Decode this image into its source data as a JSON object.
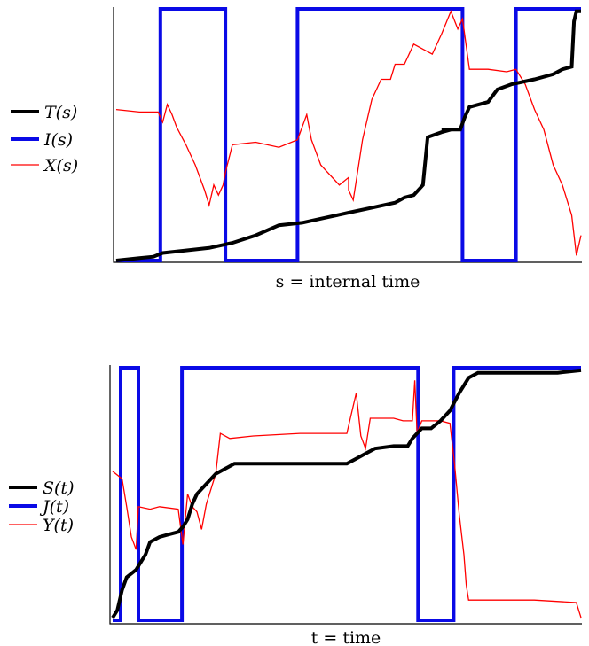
{
  "chart_data": [
    {
      "type": "line",
      "title": "",
      "xlabel": "s = internal time",
      "ylabel": "",
      "xlim": [
        0,
        1
      ],
      "ylim": [
        0,
        1
      ],
      "grid": false,
      "legend_position": "left",
      "series": [
        {
          "name": "T(s)",
          "color": "#000000",
          "width": 4,
          "points": [
            [
              0,
              0
            ],
            [
              0.05,
              0.01
            ],
            [
              0.08,
              0.015
            ],
            [
              0.1,
              0.03
            ],
            [
              0.15,
              0.04
            ],
            [
              0.2,
              0.05
            ],
            [
              0.25,
              0.07
            ],
            [
              0.3,
              0.1
            ],
            [
              0.35,
              0.14
            ],
            [
              0.4,
              0.15
            ],
            [
              0.45,
              0.17
            ],
            [
              0.5,
              0.19
            ],
            [
              0.55,
              0.21
            ],
            [
              0.6,
              0.23
            ],
            [
              0.62,
              0.25
            ],
            [
              0.64,
              0.26
            ],
            [
              0.66,
              0.3
            ],
            [
              0.67,
              0.49
            ],
            [
              0.7,
              0.51
            ],
            [
              0.72,
              0.52
            ],
            [
              0.7,
              0.52
            ],
            [
              0.74,
              0.52
            ],
            [
              0.75,
              0.57
            ],
            [
              0.76,
              0.61
            ],
            [
              0.8,
              0.63
            ],
            [
              0.82,
              0.68
            ],
            [
              0.85,
              0.7
            ],
            [
              0.9,
              0.72
            ],
            [
              0.94,
              0.74
            ],
            [
              0.96,
              0.76
            ],
            [
              0.98,
              0.77
            ],
            [
              0.985,
              0.95
            ],
            [
              0.99,
              0.99
            ],
            [
              1,
              0.99
            ]
          ]
        },
        {
          "name": "I(s)",
          "color": "#0a0ae6",
          "width": 4,
          "steps": [
            [
              0,
              0
            ],
            [
              0.095,
              1
            ],
            [
              0.235,
              0
            ],
            [
              0.39,
              1
            ],
            [
              0.745,
              0
            ],
            [
              0.86,
              1
            ],
            [
              1,
              1
            ]
          ]
        },
        {
          "name": "X(s)",
          "color": "#ff0000",
          "width": 1.3,
          "points": [
            [
              0,
              0.6
            ],
            [
              0.05,
              0.59
            ],
            [
              0.09,
              0.59
            ],
            [
              0.1,
              0.55
            ],
            [
              0.11,
              0.62
            ],
            [
              0.12,
              0.58
            ],
            [
              0.13,
              0.53
            ],
            [
              0.15,
              0.46
            ],
            [
              0.17,
              0.38
            ],
            [
              0.19,
              0.28
            ],
            [
              0.2,
              0.22
            ],
            [
              0.21,
              0.3
            ],
            [
              0.22,
              0.26
            ],
            [
              0.23,
              0.3
            ],
            [
              0.235,
              0.35
            ],
            [
              0.25,
              0.46
            ],
            [
              0.3,
              0.47
            ],
            [
              0.35,
              0.45
            ],
            [
              0.39,
              0.48
            ],
            [
              0.41,
              0.58
            ],
            [
              0.42,
              0.48
            ],
            [
              0.44,
              0.38
            ],
            [
              0.45,
              0.36
            ],
            [
              0.48,
              0.3
            ],
            [
              0.5,
              0.33
            ],
            [
              0.5,
              0.28
            ],
            [
              0.51,
              0.24
            ],
            [
              0.52,
              0.36
            ],
            [
              0.53,
              0.48
            ],
            [
              0.55,
              0.64
            ],
            [
              0.57,
              0.72
            ],
            [
              0.59,
              0.72
            ],
            [
              0.6,
              0.78
            ],
            [
              0.62,
              0.78
            ],
            [
              0.64,
              0.86
            ],
            [
              0.66,
              0.84
            ],
            [
              0.68,
              0.82
            ],
            [
              0.7,
              0.9
            ],
            [
              0.72,
              0.99
            ],
            [
              0.735,
              0.92
            ],
            [
              0.745,
              0.96
            ],
            [
              0.76,
              0.76
            ],
            [
              0.8,
              0.76
            ],
            [
              0.84,
              0.75
            ],
            [
              0.86,
              0.76
            ],
            [
              0.88,
              0.7
            ],
            [
              0.9,
              0.6
            ],
            [
              0.92,
              0.52
            ],
            [
              0.94,
              0.38
            ],
            [
              0.96,
              0.3
            ],
            [
              0.98,
              0.18
            ],
            [
              0.99,
              0.02
            ],
            [
              1,
              0.1
            ]
          ]
        }
      ]
    },
    {
      "type": "line",
      "title": "",
      "xlabel": "t = time",
      "ylabel": "",
      "xlim": [
        0,
        1
      ],
      "ylim": [
        0,
        1
      ],
      "grid": false,
      "legend_position": "left",
      "series": [
        {
          "name": "S(t)",
          "color": "#000000",
          "width": 4,
          "points": [
            [
              0,
              0.01
            ],
            [
              0.01,
              0.04
            ],
            [
              0.02,
              0.12
            ],
            [
              0.03,
              0.17
            ],
            [
              0.05,
              0.2
            ],
            [
              0.07,
              0.26
            ],
            [
              0.08,
              0.31
            ],
            [
              0.1,
              0.33
            ],
            [
              0.12,
              0.34
            ],
            [
              0.14,
              0.35
            ],
            [
              0.15,
              0.37
            ],
            [
              0.16,
              0.4
            ],
            [
              0.17,
              0.46
            ],
            [
              0.18,
              0.5
            ],
            [
              0.2,
              0.54
            ],
            [
              0.22,
              0.58
            ],
            [
              0.24,
              0.6
            ],
            [
              0.26,
              0.62
            ],
            [
              0.3,
              0.62
            ],
            [
              0.4,
              0.62
            ],
            [
              0.5,
              0.62
            ],
            [
              0.52,
              0.64
            ],
            [
              0.54,
              0.66
            ],
            [
              0.56,
              0.68
            ],
            [
              0.6,
              0.69
            ],
            [
              0.63,
              0.69
            ],
            [
              0.64,
              0.72
            ],
            [
              0.66,
              0.76
            ],
            [
              0.68,
              0.76
            ],
            [
              0.7,
              0.79
            ],
            [
              0.72,
              0.83
            ],
            [
              0.74,
              0.9
            ],
            [
              0.76,
              0.96
            ],
            [
              0.78,
              0.98
            ],
            [
              0.85,
              0.98
            ],
            [
              0.95,
              0.98
            ],
            [
              1,
              0.99
            ]
          ]
        },
        {
          "name": "J(t)",
          "color": "#0a0ae6",
          "width": 4,
          "steps": [
            [
              0,
              0
            ],
            [
              0.017,
              1
            ],
            [
              0.055,
              0
            ],
            [
              0.148,
              1
            ],
            [
              0.652,
              0
            ],
            [
              0.728,
              1
            ],
            [
              1,
              1
            ]
          ]
        },
        {
          "name": "Y(t)",
          "color": "#ff0000",
          "width": 1.3,
          "points": [
            [
              0,
              0.59
            ],
            [
              0.02,
              0.56
            ],
            [
              0.03,
              0.45
            ],
            [
              0.04,
              0.33
            ],
            [
              0.05,
              0.28
            ],
            [
              0.055,
              0.45
            ],
            [
              0.08,
              0.44
            ],
            [
              0.1,
              0.45
            ],
            [
              0.14,
              0.44
            ],
            [
              0.15,
              0.3
            ],
            [
              0.16,
              0.5
            ],
            [
              0.17,
              0.45
            ],
            [
              0.18,
              0.43
            ],
            [
              0.19,
              0.36
            ],
            [
              0.2,
              0.46
            ],
            [
              0.21,
              0.52
            ],
            [
              0.22,
              0.58
            ],
            [
              0.23,
              0.74
            ],
            [
              0.25,
              0.72
            ],
            [
              0.3,
              0.73
            ],
            [
              0.4,
              0.74
            ],
            [
              0.5,
              0.74
            ],
            [
              0.52,
              0.9
            ],
            [
              0.53,
              0.73
            ],
            [
              0.54,
              0.68
            ],
            [
              0.55,
              0.8
            ],
            [
              0.6,
              0.8
            ],
            [
              0.62,
              0.79
            ],
            [
              0.64,
              0.79
            ],
            [
              0.645,
              0.95
            ],
            [
              0.65,
              0.74
            ],
            [
              0.66,
              0.79
            ],
            [
              0.7,
              0.79
            ],
            [
              0.72,
              0.78
            ],
            [
              0.73,
              0.62
            ],
            [
              0.74,
              0.42
            ],
            [
              0.75,
              0.26
            ],
            [
              0.755,
              0.14
            ],
            [
              0.76,
              0.08
            ],
            [
              0.8,
              0.08
            ],
            [
              0.9,
              0.08
            ],
            [
              0.99,
              0.07
            ],
            [
              1,
              0.01
            ]
          ]
        }
      ]
    }
  ]
}
